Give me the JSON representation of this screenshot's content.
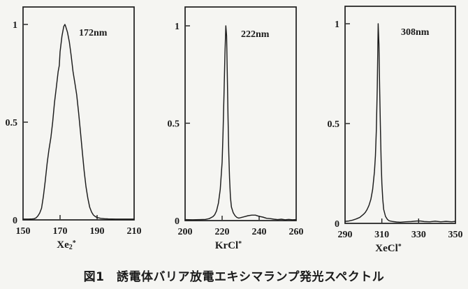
{
  "figure": {
    "caption": "図1　誘電体バリア放電エキシマランプ発光スペクトル"
  },
  "chart_data": [
    {
      "type": "line",
      "name": "Xe2* excimer emission spectrum",
      "peak_label": "172nm",
      "peak_nm": 172,
      "species": {
        "pre": "Xe",
        "sub": "2",
        "sup": "*"
      },
      "xlim": [
        150,
        210
      ],
      "ylim": [
        0,
        1
      ],
      "xticks": [
        150,
        170,
        190,
        210
      ],
      "yticks": [
        0,
        0.5,
        1
      ],
      "ytick_labels": [
        "0",
        "0.5",
        "1"
      ],
      "grid": false,
      "legend": false,
      "points": [
        [
          150,
          0.004
        ],
        [
          153,
          0.004
        ],
        [
          155,
          0.005
        ],
        [
          156,
          0.006
        ],
        [
          157,
          0.01
        ],
        [
          158,
          0.02
        ],
        [
          159,
          0.035
        ],
        [
          160,
          0.06
        ],
        [
          161,
          0.12
        ],
        [
          162,
          0.2
        ],
        [
          163,
          0.29
        ],
        [
          164,
          0.36
        ],
        [
          165,
          0.42
        ],
        [
          166,
          0.5
        ],
        [
          167,
          0.6
        ],
        [
          168,
          0.68
        ],
        [
          169,
          0.76
        ],
        [
          169.6,
          0.79
        ],
        [
          170,
          0.86
        ],
        [
          171,
          0.94
        ],
        [
          172,
          0.99
        ],
        [
          172.6,
          1.0
        ],
        [
          173,
          0.99
        ],
        [
          174,
          0.96
        ],
        [
          175,
          0.91
        ],
        [
          176,
          0.84
        ],
        [
          177,
          0.76
        ],
        [
          178,
          0.7
        ],
        [
          179,
          0.64
        ],
        [
          180,
          0.55
        ],
        [
          181,
          0.45
        ],
        [
          182,
          0.35
        ],
        [
          183,
          0.25
        ],
        [
          184,
          0.17
        ],
        [
          185,
          0.11
        ],
        [
          186,
          0.065
        ],
        [
          187,
          0.04
        ],
        [
          188,
          0.025
        ],
        [
          189,
          0.017
        ],
        [
          190,
          0.012
        ],
        [
          192,
          0.008
        ],
        [
          194,
          0.006
        ],
        [
          196,
          0.005
        ],
        [
          200,
          0.004
        ],
        [
          205,
          0.004
        ],
        [
          210,
          0.004
        ]
      ]
    },
    {
      "type": "line",
      "name": "KrCl* excimer emission spectrum",
      "peak_label": "222nm",
      "peak_nm": 222,
      "species": {
        "pre": "KrCl",
        "sub": "",
        "sup": "*"
      },
      "xlim": [
        200,
        260
      ],
      "ylim": [
        0,
        1
      ],
      "xticks": [
        200,
        220,
        240,
        260
      ],
      "yticks": [
        0,
        0.5,
        1
      ],
      "ytick_labels": [
        "0",
        "0.5",
        "1"
      ],
      "grid": false,
      "legend": false,
      "points": [
        [
          200,
          0.005
        ],
        [
          204,
          0.004
        ],
        [
          208,
          0.005
        ],
        [
          211,
          0.006
        ],
        [
          213,
          0.01
        ],
        [
          215,
          0.02
        ],
        [
          216,
          0.03
        ],
        [
          217,
          0.05
        ],
        [
          218,
          0.09
        ],
        [
          219,
          0.16
        ],
        [
          220,
          0.3
        ],
        [
          220.5,
          0.45
        ],
        [
          221,
          0.65
        ],
        [
          221.5,
          0.85
        ],
        [
          222,
          1.0
        ],
        [
          222.4,
          0.95
        ],
        [
          222.8,
          0.75
        ],
        [
          223.2,
          0.52
        ],
        [
          223.6,
          0.35
        ],
        [
          224,
          0.22
        ],
        [
          224.5,
          0.12
        ],
        [
          225,
          0.07
        ],
        [
          226,
          0.04
        ],
        [
          227,
          0.025
        ],
        [
          228,
          0.016
        ],
        [
          229,
          0.013
        ],
        [
          230,
          0.015
        ],
        [
          232,
          0.02
        ],
        [
          234,
          0.025
        ],
        [
          236,
          0.028
        ],
        [
          238,
          0.028
        ],
        [
          240,
          0.022
        ],
        [
          242,
          0.018
        ],
        [
          244,
          0.012
        ],
        [
          246,
          0.01
        ],
        [
          248,
          0.007
        ],
        [
          250,
          0.005
        ],
        [
          252,
          0.007
        ],
        [
          254,
          0.004
        ],
        [
          256,
          0.006
        ],
        [
          258,
          0.004
        ],
        [
          260,
          0.005
        ]
      ]
    },
    {
      "type": "line",
      "name": "XeCl* excimer emission spectrum",
      "peak_label": "308nm",
      "peak_nm": 308,
      "species": {
        "pre": "XeCl",
        "sub": "",
        "sup": "*"
      },
      "xlim": [
        290,
        350
      ],
      "ylim": [
        0,
        1
      ],
      "xticks": [
        290,
        310,
        330,
        350
      ],
      "yticks": [
        0,
        0.5,
        1
      ],
      "ytick_labels": [
        "0",
        "0.5",
        "1"
      ],
      "grid": false,
      "legend": false,
      "points": [
        [
          290,
          0.01
        ],
        [
          292,
          0.012
        ],
        [
          294,
          0.016
        ],
        [
          296,
          0.022
        ],
        [
          298,
          0.03
        ],
        [
          300,
          0.045
        ],
        [
          301,
          0.055
        ],
        [
          302,
          0.07
        ],
        [
          303,
          0.09
        ],
        [
          304,
          0.12
        ],
        [
          305,
          0.17
        ],
        [
          306,
          0.26
        ],
        [
          306.5,
          0.34
        ],
        [
          307,
          0.47
        ],
        [
          307.5,
          0.68
        ],
        [
          308,
          1.0
        ],
        [
          308.4,
          0.9
        ],
        [
          308.8,
          0.68
        ],
        [
          309.2,
          0.48
        ],
        [
          309.6,
          0.32
        ],
        [
          310,
          0.2
        ],
        [
          310.5,
          0.12
        ],
        [
          311,
          0.07
        ],
        [
          312,
          0.035
        ],
        [
          313,
          0.02
        ],
        [
          314,
          0.013
        ],
        [
          316,
          0.009
        ],
        [
          318,
          0.007
        ],
        [
          320,
          0.006
        ],
        [
          323,
          0.008
        ],
        [
          326,
          0.009
        ],
        [
          329,
          0.012
        ],
        [
          331,
          0.012
        ],
        [
          333,
          0.009
        ],
        [
          336,
          0.008
        ],
        [
          339,
          0.011
        ],
        [
          342,
          0.008
        ],
        [
          345,
          0.01
        ],
        [
          348,
          0.008
        ],
        [
          350,
          0.01
        ]
      ]
    }
  ]
}
